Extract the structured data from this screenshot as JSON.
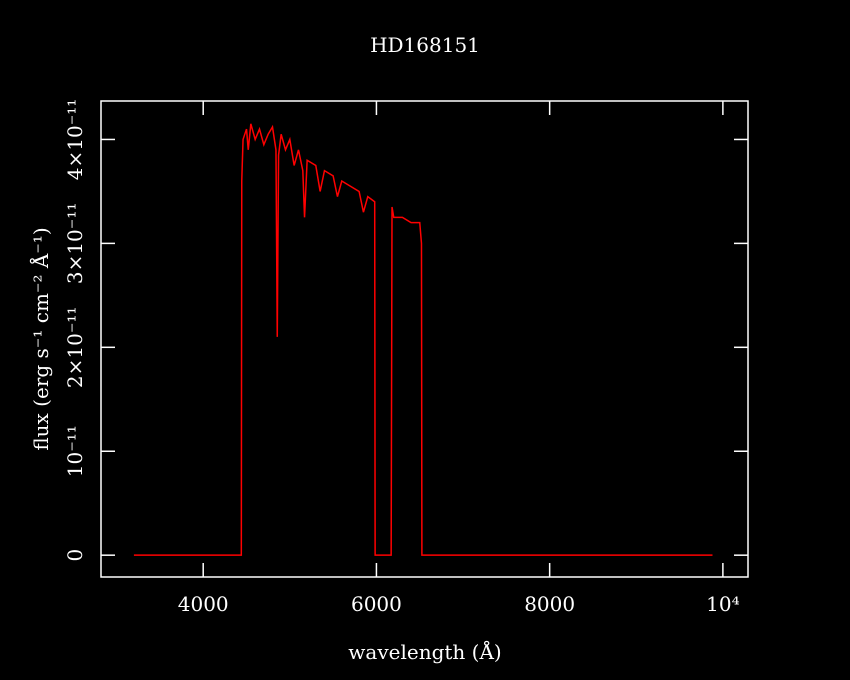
{
  "chart_data": {
    "type": "line",
    "title": "HD168151",
    "x_label": "wavelength (Å)",
    "y_label": "flux (erg s⁻¹ cm⁻² Å⁻¹)",
    "xlim": [
      2820,
      10290
    ],
    "ylim": [
      -2.1e-12,
      4.37e-11
    ],
    "xticks": [
      4000,
      6000,
      8000,
      {
        "value": 10000,
        "label": "10⁴"
      }
    ],
    "yticks": [
      0,
      {
        "value": 1e-11,
        "label": "10⁻¹¹"
      },
      {
        "value": 2e-11,
        "label": "2×10⁻¹¹"
      },
      {
        "value": 3e-11,
        "label": "3×10⁻¹¹"
      },
      {
        "value": 4e-11,
        "label": "4×10⁻¹¹"
      }
    ],
    "series": [
      {
        "color": "#ff0000",
        "x": [
          3200,
          4440,
          4445,
          4460,
          4500,
          4520,
          4550,
          4600,
          4650,
          4700,
          4750,
          4800,
          4840,
          4855,
          4870,
          4900,
          4950,
          5000,
          5050,
          5100,
          5150,
          5170,
          5200,
          5300,
          5350,
          5400,
          5500,
          5550,
          5600,
          5700,
          5800,
          5850,
          5900,
          5980,
          5985,
          6170,
          6180,
          6200,
          6300,
          6400,
          6500,
          6520,
          6525,
          9880
        ],
        "values": [
          0,
          0,
          3.6e-11,
          4e-11,
          4.1e-11,
          3.9e-11,
          4.15e-11,
          4e-11,
          4.1e-11,
          3.95e-11,
          4.05e-11,
          4.12e-11,
          3.9e-11,
          2.1e-11,
          3.85e-11,
          4.05e-11,
          3.9e-11,
          4e-11,
          3.75e-11,
          3.9e-11,
          3.7e-11,
          3.25e-11,
          3.8e-11,
          3.75e-11,
          3.5e-11,
          3.7e-11,
          3.65e-11,
          3.45e-11,
          3.6e-11,
          3.55e-11,
          3.5e-11,
          3.3e-11,
          3.45e-11,
          3.4e-11,
          0,
          0,
          3.35e-11,
          3.25e-11,
          3.25e-11,
          3.2e-11,
          3.2e-11,
          3e-11,
          0,
          0
        ]
      }
    ]
  }
}
